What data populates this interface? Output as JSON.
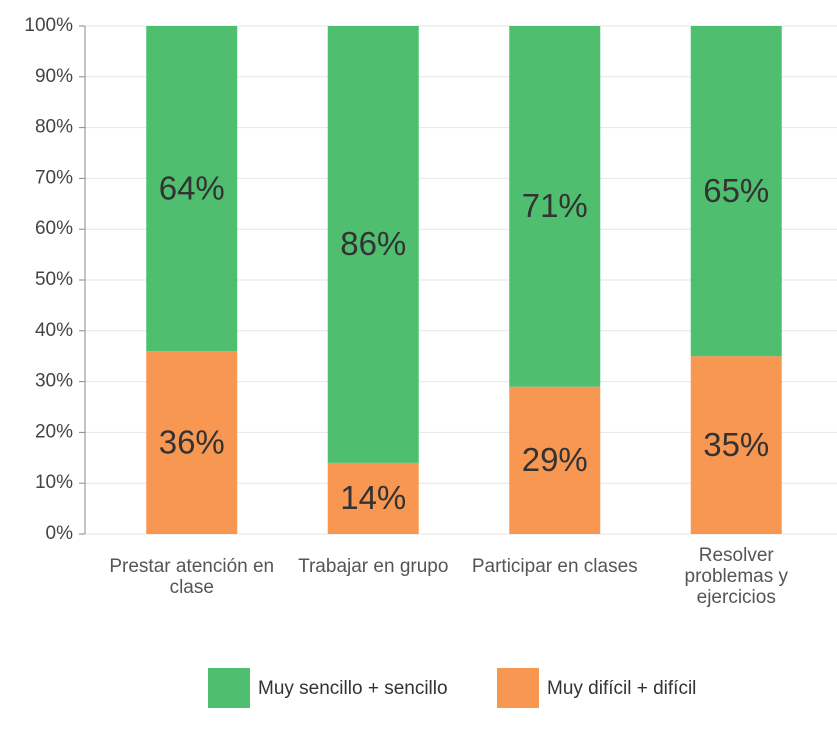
{
  "chart_data": {
    "type": "stacked_bar",
    "categories": [
      "Prestar atención en clase",
      "Trabajar en grupo",
      "Participar en clases",
      "Resolver problemas y ejercicios"
    ],
    "series": [
      {
        "name": "Muy sencillo + sencillo",
        "color": "#4fbf6f",
        "values": [
          64,
          86,
          71,
          65
        ],
        "value_labels": [
          "64%",
          "86%",
          "71%",
          "65%"
        ]
      },
      {
        "name": "Muy difícil + difícil",
        "color": "#f79752",
        "values": [
          36,
          14,
          29,
          35
        ],
        "value_labels": [
          "36%",
          "14%",
          "29%",
          "35%"
        ]
      }
    ],
    "ylim": [
      0,
      100
    ],
    "yticks": [
      {
        "value": 0,
        "label": "0%"
      },
      {
        "value": 10,
        "label": "10%"
      },
      {
        "value": 20,
        "label": "20%"
      },
      {
        "value": 30,
        "label": "30%"
      },
      {
        "value": 40,
        "label": "40%"
      },
      {
        "value": 50,
        "label": "50%"
      },
      {
        "value": 60,
        "label": "60%"
      },
      {
        "value": 70,
        "label": "70%"
      },
      {
        "value": 80,
        "label": "80%"
      },
      {
        "value": 90,
        "label": "90%"
      },
      {
        "value": 100,
        "label": "100%"
      }
    ],
    "grid": true
  }
}
